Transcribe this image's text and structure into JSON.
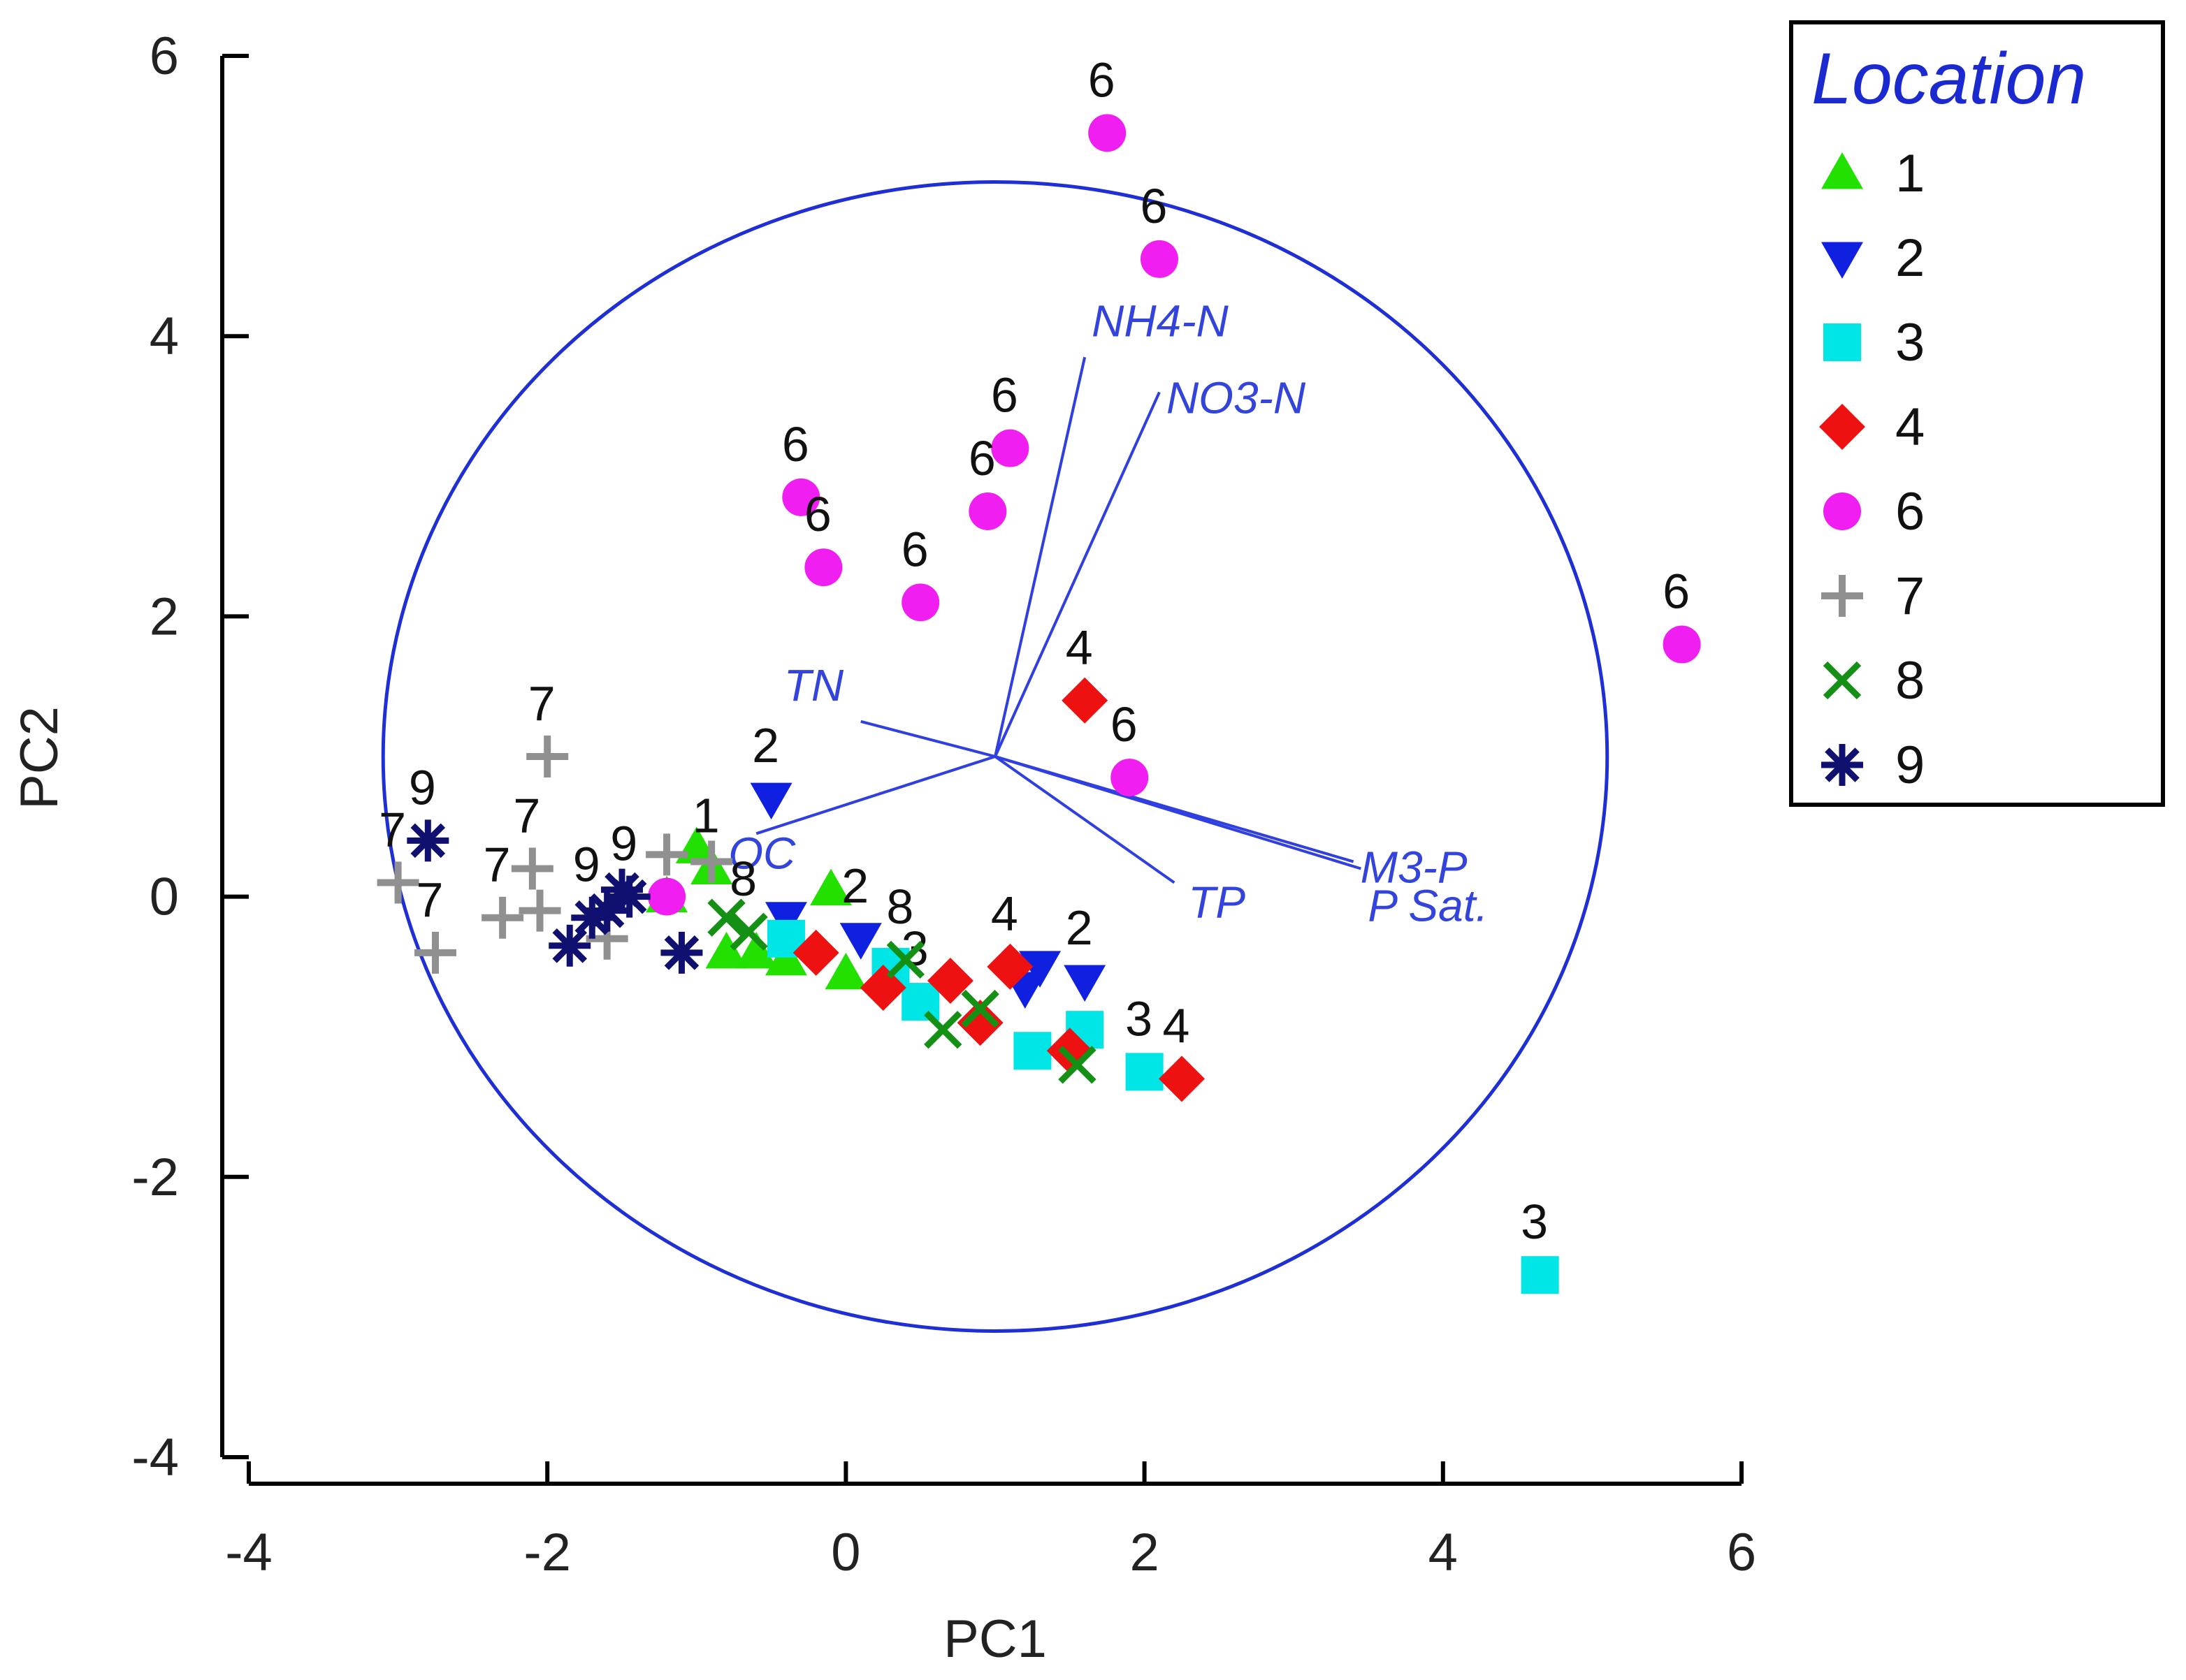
{
  "chart_data": {
    "type": "scatter",
    "title": "",
    "xlabel": "PC1",
    "ylabel": "PC2",
    "xlim": [
      -4,
      6
    ],
    "ylim": [
      -4,
      6
    ],
    "x_ticks": [
      -4,
      -2,
      0,
      2,
      4,
      6
    ],
    "y_ticks": [
      -4,
      -2,
      0,
      2,
      4,
      6
    ],
    "x_tick_labels": [
      "-4",
      "-2",
      "0",
      "2",
      "4",
      "6"
    ],
    "y_tick_labels": [
      "-4",
      "-2",
      "0",
      "2",
      "4",
      "6"
    ],
    "grid": false,
    "legend_position": "top-right",
    "legend_title": "Location",
    "colors": {
      "axis": "#000000",
      "circle": "#1f2fd6",
      "vector": "#2f3fe0",
      "vector_label": "#3344dd",
      "legend_title": "#1a2ad0",
      "point_label": "#111111"
    },
    "correlation_circle": {
      "center": [
        1,
        1
      ],
      "radius": 4.1
    },
    "loadings": [
      {
        "name": "NH4-N",
        "x": 1.6,
        "y": 3.85
      },
      {
        "name": "NO3-N",
        "x": 2.1,
        "y": 3.6
      },
      {
        "name": "TN",
        "x": 0.1,
        "y": 1.25
      },
      {
        "name": "TP",
        "x": 2.2,
        "y": 0.1
      },
      {
        "name": "M3-P",
        "x": 3.4,
        "y": 0.25
      },
      {
        "name": "P Sat.",
        "x": 3.45,
        "y": 0.2
      },
      {
        "name": "OC",
        "x": -0.6,
        "y": 0.45
      }
    ],
    "series": [
      {
        "name": "1",
        "marker": "triangle-up",
        "color": "#22e000",
        "points": [
          [
            -1.2,
            0.0
          ],
          [
            -1.0,
            0.35
          ],
          [
            -0.9,
            0.2
          ],
          [
            -0.8,
            -0.4
          ],
          [
            -0.6,
            -0.4
          ],
          [
            -0.4,
            -0.45
          ],
          [
            0.0,
            -0.55
          ],
          [
            -0.1,
            0.05
          ]
        ],
        "labeled": [
          [
            -0.9,
            0.2
          ]
        ]
      },
      {
        "name": "2",
        "marker": "triangle-down",
        "color": "#1020e0",
        "points": [
          [
            -0.5,
            0.7
          ],
          [
            -0.4,
            -0.15
          ],
          [
            0.1,
            -0.3
          ],
          [
            1.2,
            -0.65
          ],
          [
            1.6,
            -0.6
          ],
          [
            1.3,
            -0.5
          ]
        ],
        "labeled": [
          [
            -0.5,
            0.7
          ],
          [
            0.1,
            -0.3
          ],
          [
            1.6,
            -0.6
          ]
        ]
      },
      {
        "name": "3",
        "marker": "square",
        "color": "#00e5e5",
        "points": [
          [
            4.65,
            -2.7
          ],
          [
            2.0,
            -1.25
          ],
          [
            1.6,
            -0.95
          ],
          [
            1.25,
            -1.1
          ],
          [
            0.5,
            -0.75
          ],
          [
            0.3,
            -0.5
          ],
          [
            -0.4,
            -0.3
          ]
        ],
        "labeled": [
          [
            4.65,
            -2.7
          ],
          [
            2.0,
            -1.25
          ],
          [
            0.5,
            -0.75
          ]
        ]
      },
      {
        "name": "4",
        "marker": "diamond",
        "color": "#ee1111",
        "points": [
          [
            1.6,
            1.4
          ],
          [
            2.25,
            -1.3
          ],
          [
            1.5,
            -1.1
          ],
          [
            0.9,
            -0.9
          ],
          [
            0.7,
            -0.6
          ],
          [
            0.25,
            -0.65
          ],
          [
            -0.2,
            -0.4
          ],
          [
            1.1,
            -0.5
          ]
        ],
        "labeled": [
          [
            1.6,
            1.4
          ],
          [
            2.25,
            -1.3
          ],
          [
            1.1,
            -0.5
          ]
        ]
      },
      {
        "name": "6",
        "marker": "circle",
        "color": "#f01ef0",
        "points": [
          [
            1.75,
            5.45
          ],
          [
            2.1,
            4.55
          ],
          [
            1.1,
            3.2
          ],
          [
            0.95,
            2.75
          ],
          [
            0.5,
            2.1
          ],
          [
            -0.3,
            2.85
          ],
          [
            -0.15,
            2.35
          ],
          [
            5.6,
            1.8
          ],
          [
            1.9,
            0.85
          ],
          [
            -1.2,
            0.0
          ]
        ],
        "labeled": [
          [
            1.75,
            5.45
          ],
          [
            2.1,
            4.55
          ],
          [
            1.1,
            3.2
          ],
          [
            0.95,
            2.75
          ],
          [
            0.5,
            2.1
          ],
          [
            -0.3,
            2.85
          ],
          [
            -0.15,
            2.35
          ],
          [
            5.6,
            1.8
          ],
          [
            1.9,
            0.85
          ]
        ]
      },
      {
        "name": "7",
        "marker": "plus",
        "color": "#909090",
        "points": [
          [
            -2.0,
            1.0
          ],
          [
            -3.0,
            0.1
          ],
          [
            -2.75,
            -0.4
          ],
          [
            -2.3,
            -0.15
          ],
          [
            -2.1,
            0.2
          ],
          [
            -2.05,
            -0.1
          ],
          [
            -1.6,
            -0.3
          ],
          [
            -1.2,
            0.3
          ],
          [
            -0.9,
            0.25
          ]
        ],
        "labeled": [
          [
            -2.0,
            1.0
          ],
          [
            -3.0,
            0.1
          ],
          [
            -2.75,
            -0.4
          ],
          [
            -2.3,
            -0.15
          ],
          [
            -2.1,
            0.2
          ]
        ]
      },
      {
        "name": "8",
        "marker": "x",
        "color": "#149014",
        "points": [
          [
            1.55,
            -1.2
          ],
          [
            0.65,
            -0.95
          ],
          [
            0.9,
            -0.8
          ],
          [
            0.4,
            -0.45
          ],
          [
            -0.8,
            -0.15
          ],
          [
            -0.65,
            -0.25
          ]
        ],
        "labeled": [
          [
            0.4,
            -0.45
          ],
          [
            -0.65,
            -0.25
          ]
        ]
      },
      {
        "name": "9",
        "marker": "asterisk",
        "color": "#101070",
        "points": [
          [
            -2.8,
            0.4
          ],
          [
            -1.85,
            -0.35
          ],
          [
            -1.6,
            -0.1
          ],
          [
            -1.7,
            -0.15
          ],
          [
            -1.45,
            0.0
          ],
          [
            -1.1,
            -0.4
          ],
          [
            -1.5,
            0.05
          ]
        ],
        "labeled": [
          [
            -2.8,
            0.4
          ],
          [
            -1.7,
            -0.15
          ],
          [
            -1.45,
            0.0
          ]
        ]
      }
    ]
  }
}
